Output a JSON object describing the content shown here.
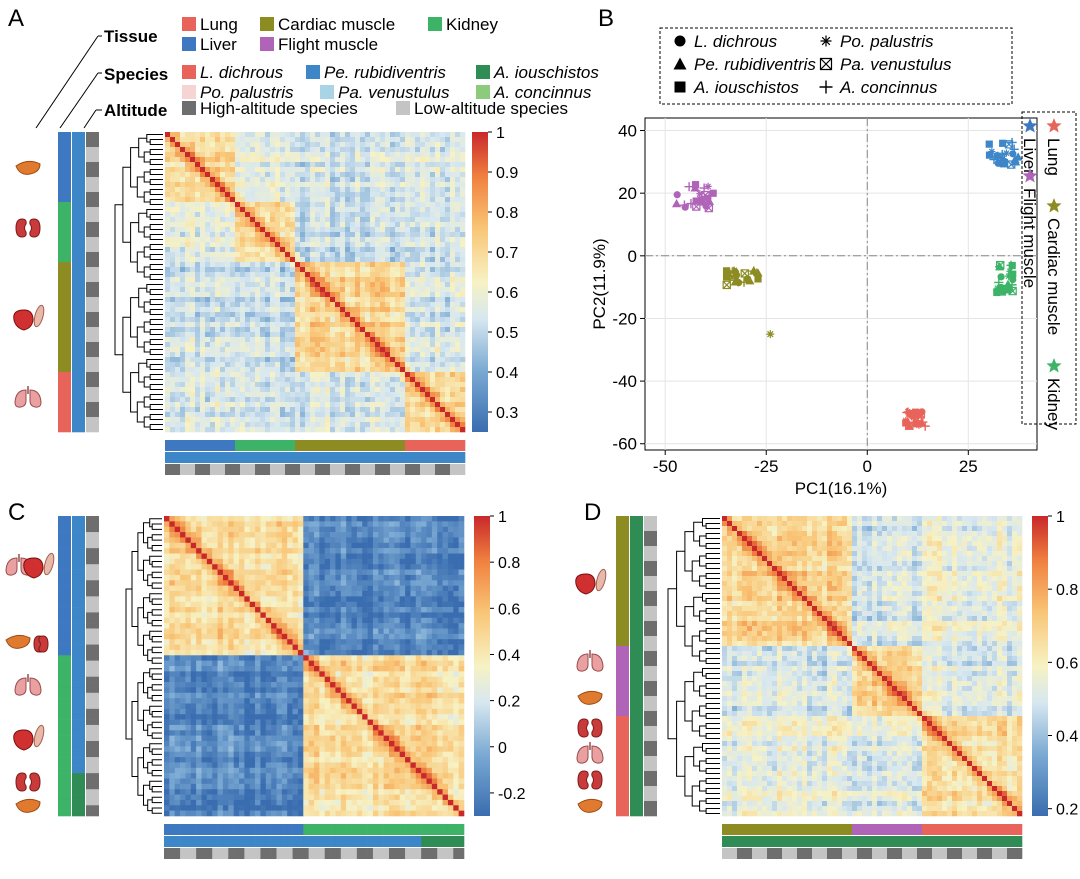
{
  "figure": {
    "panels": {
      "A": "A",
      "B": "B",
      "C": "C",
      "D": "D"
    },
    "colors": {
      "lung": "#E8645A",
      "cardiac": "#8C8C22",
      "kidney": "#3DB368",
      "liver": "#3D78C0",
      "flight": "#B064B8",
      "L_dichrous": "#E8645A",
      "Pe_rubidiventris": "#3D86C8",
      "A_iouschistos": "#2F8C55",
      "Po_palustris": "#F7D4D4",
      "Pa_venustulus": "#A8D4E6",
      "A_concinnus": "#8CCB7C",
      "high": "#6E6E6E",
      "low": "#C4C4C4",
      "sym_circle_fill": "#000000"
    },
    "legendA": {
      "tissue_title": "Tissue",
      "species_title": "Species",
      "altitude_title": "Altitude",
      "tissue": [
        {
          "label": "Lung",
          "color": "#E8645A"
        },
        {
          "label": "Cardiac muscle",
          "color": "#8C8C22"
        },
        {
          "label": "Kidney",
          "color": "#3DB368"
        },
        {
          "label": "Liver",
          "color": "#3D78C0"
        },
        {
          "label": "Flight muscle",
          "color": "#B064B8"
        }
      ],
      "species": [
        {
          "label": "L. dichrous",
          "color": "#E8645A"
        },
        {
          "label": "Pe. rubidiventris",
          "color": "#3D86C8"
        },
        {
          "label": "A. iouschistos",
          "color": "#2F8C55"
        },
        {
          "label": "Po. palustris",
          "color": "#F7D4D4"
        },
        {
          "label": "Pa. venustulus",
          "color": "#A8D4E6"
        },
        {
          "label": "A. concinnus",
          "color": "#8CCB7C"
        }
      ],
      "altitude": [
        {
          "label": "High-altitude species",
          "color": "#6E6E6E"
        },
        {
          "label": "Low-altitude species",
          "color": "#C4C4C4"
        }
      ]
    },
    "legendB": {
      "species": [
        {
          "label": "L. dichrous",
          "symbol": "circle"
        },
        {
          "label": "Po. palustris",
          "symbol": "asterisk"
        },
        {
          "label": "Pe. rubidiventris",
          "symbol": "triangle"
        },
        {
          "label": "Pa. venustulus",
          "symbol": "boxx"
        },
        {
          "label": "A. iouschistos",
          "symbol": "square"
        },
        {
          "label": "A. concinnus",
          "symbol": "plus"
        }
      ],
      "tissue": [
        {
          "label": "Lung",
          "color": "#E8645A"
        },
        {
          "label": "Cardiac muscle",
          "color": "#8C8C22"
        },
        {
          "label": "Kidney",
          "color": "#3DB368"
        },
        {
          "label": "Liver",
          "color": "#3D78C0"
        },
        {
          "label": "Flight muscle",
          "color": "#B064B8"
        }
      ]
    }
  },
  "chart_data": [
    {
      "id": "A",
      "type": "heatmap",
      "title": "",
      "n_samples": 60,
      "colorbar": {
        "ticks": [
          "1",
          "0.9",
          "0.8",
          "0.7",
          "0.6",
          "0.5",
          "0.4",
          "0.3"
        ],
        "range": [
          0.25,
          1
        ]
      },
      "tissue_blocks": [
        {
          "tissue": "liver",
          "count": 14
        },
        {
          "tissue": "kidney",
          "count": 12
        },
        {
          "tissue": "mixed_muscle",
          "count": 22
        },
        {
          "tissue": "lung",
          "count": 12
        }
      ],
      "organ_icons": [
        "liver",
        "kidney",
        "heart_muscle",
        "lung"
      ]
    },
    {
      "id": "B",
      "type": "scatter",
      "xlabel": "PC1(16.1%)",
      "ylabel": "PC2(11.9%)",
      "xlim": [
        -55,
        42
      ],
      "ylim": [
        -62,
        44
      ],
      "xticks": [
        "-50",
        "-25",
        "0",
        "25"
      ],
      "yticks": [
        "40",
        "20",
        "0",
        "-20",
        "-40",
        "-60"
      ],
      "clusters": [
        {
          "tissue": "Liver",
          "color": "#3D86C8",
          "center": [
            34,
            33
          ],
          "spread": [
            4,
            4
          ]
        },
        {
          "tissue": "Kidney",
          "color": "#3DB368",
          "center": [
            34,
            -7
          ],
          "spread": [
            2,
            5
          ]
        },
        {
          "tissue": "Lung",
          "color": "#E8645A",
          "center": [
            12,
            -52
          ],
          "spread": [
            2.5,
            2.5
          ]
        },
        {
          "tissue": "Cardiac muscle",
          "color": "#8C8C22",
          "center": [
            -31,
            -7
          ],
          "spread": [
            4,
            2.5
          ]
        },
        {
          "tissue": "Flight muscle",
          "color": "#B064B8",
          "center": [
            -43,
            19
          ],
          "spread": [
            5,
            4
          ]
        }
      ],
      "outliers": [
        {
          "tissue": "Cardiac muscle",
          "x": -24,
          "y": -25,
          "symbol": "asterisk"
        }
      ]
    },
    {
      "id": "C",
      "type": "heatmap",
      "n_samples": 56,
      "colorbar": {
        "ticks": [
          "1",
          "0.8",
          "0.6",
          "0.4",
          "0.2",
          "0",
          "-0.2"
        ],
        "range": [
          -0.3,
          1
        ]
      },
      "organ_icons": [
        "lung_heart",
        "liver_kidney",
        "lung",
        "heart_muscle",
        "kidney",
        "liver"
      ]
    },
    {
      "id": "D",
      "type": "heatmap",
      "n_samples": 60,
      "colorbar": {
        "ticks": [
          "1",
          "0.8",
          "0.6",
          "0.4",
          "0.2"
        ],
        "range": [
          0.18,
          1
        ]
      },
      "organ_icons": [
        "heart_muscle",
        "lung",
        "liver",
        "kidney",
        "lung",
        "kidney",
        "liver"
      ]
    }
  ]
}
